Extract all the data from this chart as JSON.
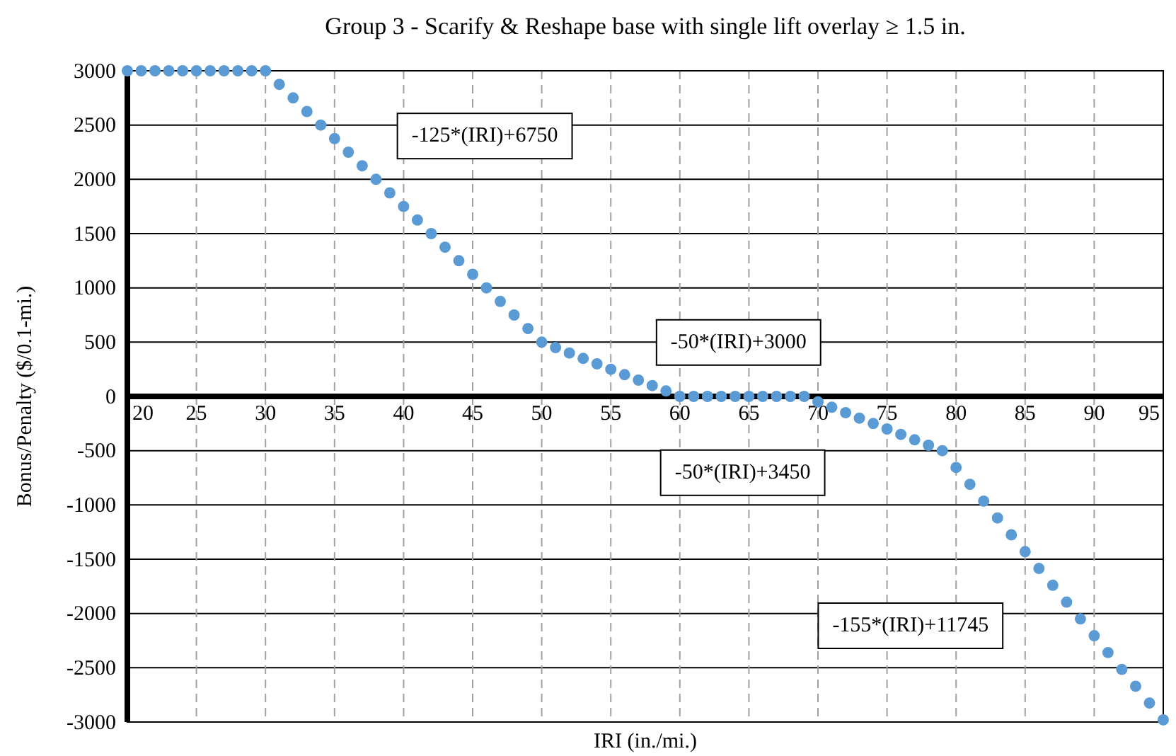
{
  "chart_data": {
    "type": "scatter",
    "title": "Group 3 - Scarify & Reshape base with single lift overlay ≥ 1.5 in.",
    "xlabel": "IRI (in./mi.)",
    "ylabel": "Bonus/Penalty ($/0.1-mi.)",
    "x": [
      20,
      21,
      22,
      23,
      24,
      25,
      26,
      27,
      28,
      29,
      30,
      31,
      32,
      33,
      34,
      35,
      36,
      37,
      38,
      39,
      40,
      41,
      42,
      43,
      44,
      45,
      46,
      47,
      48,
      49,
      50,
      51,
      52,
      53,
      54,
      55,
      56,
      57,
      58,
      59,
      60,
      61,
      62,
      63,
      64,
      65,
      66,
      67,
      68,
      69,
      70,
      71,
      72,
      73,
      74,
      75,
      76,
      77,
      78,
      79,
      80,
      81,
      82,
      83,
      84,
      85,
      86,
      87,
      88,
      89,
      90,
      91,
      92,
      93,
      94,
      95
    ],
    "series": [
      {
        "color": "#5b9bd5",
        "values": [
          3000,
          3000,
          3000,
          3000,
          3000,
          3000,
          3000,
          3000,
          3000,
          3000,
          3000,
          2875,
          2750,
          2625,
          2500,
          2375,
          2250,
          2125,
          2000,
          1875,
          1750,
          1625,
          1500,
          1375,
          1250,
          1125,
          1000,
          875,
          750,
          625,
          500,
          450,
          400,
          350,
          300,
          250,
          200,
          150,
          100,
          50,
          0,
          0,
          0,
          0,
          0,
          0,
          0,
          0,
          0,
          0,
          -50,
          -100,
          -150,
          -200,
          -250,
          -300,
          -350,
          -400,
          -450,
          -500,
          -655,
          -810,
          -965,
          -1120,
          -1275,
          -1430,
          -1585,
          -1740,
          -1895,
          -2050,
          -2205,
          -2360,
          -2515,
          -2670,
          -2825,
          -2980
        ]
      }
    ],
    "annotations": [
      "-125*(IRI)+6750",
      "-50*(IRI)+3000",
      "-50*(IRI)+3450",
      "-155*(IRI)+11745"
    ],
    "xlim": [
      20,
      95
    ],
    "xticks": [
      20,
      25,
      30,
      35,
      40,
      45,
      50,
      55,
      60,
      65,
      70,
      75,
      80,
      85,
      90,
      95
    ],
    "ylim": [
      -3000,
      3000
    ],
    "yticks": [
      -3000,
      -2500,
      -2000,
      -1500,
      -1000,
      -500,
      0,
      500,
      1000,
      1500,
      2000,
      2500,
      3000
    ],
    "grid": true,
    "marker": "circle"
  }
}
